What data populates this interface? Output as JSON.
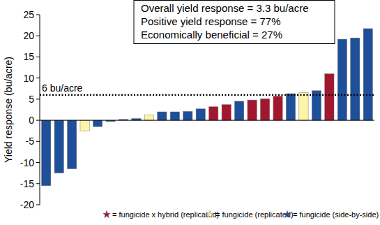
{
  "chart_data": {
    "type": "bar",
    "y_label": "Yield response (bu/acre)",
    "annotations": [
      "Overall yield response = 3.3 bu/acre",
      "Positive yield response = 77%",
      "Economically beneficial = 27%"
    ],
    "reference_line": {
      "value": 6,
      "label": "6 bu/acre",
      "line_style": "dotted"
    },
    "categories": [
      null,
      null,
      null,
      null,
      null,
      null,
      null,
      null,
      null,
      null,
      null,
      null,
      null,
      null,
      null,
      null,
      null,
      null,
      null,
      null,
      null,
      null,
      null,
      null,
      null,
      null
    ],
    "values": [
      -15.5,
      -12.5,
      -11.5,
      -2.5,
      -1.5,
      -0.3,
      0.2,
      0.4,
      1.3,
      2.0,
      2.0,
      2.1,
      2.7,
      3.2,
      3.7,
      4.5,
      4.8,
      5.1,
      5.7,
      6.3,
      6.6,
      7.0,
      11.0,
      19.2,
      19.5,
      21.7
    ],
    "colors": [
      "#1d4f9a",
      "#1d4f9a",
      "#1d4f9a",
      "#fdf5a6",
      "#1d4f9a",
      "#1d4f9a",
      "#1d4f9a",
      "#1d4f9a",
      "#fdf5a6",
      "#1d4f9a",
      "#1d4f9a",
      "#1d4f9a",
      "#1d4f9a",
      "#a3172e",
      "#a3172e",
      "#1d4f9a",
      "#a3172e",
      "#a3172e",
      "#a3172e",
      "#1d4f9a",
      "#fdf5a6",
      "#1d4f9a",
      "#a3172e",
      "#1d4f9a",
      "#1d4f9a",
      "#1d4f9a"
    ],
    "legend_entries": [
      {
        "name": "= fungicide x hybrid (replicated)",
        "color": "#a3172e",
        "marker": "star"
      },
      {
        "name": "= fungicide (replicated)",
        "color": "#fdf5a6",
        "marker": "star"
      },
      {
        "name": "= fungicide (side-by-side)",
        "color": "#1d4f9a",
        "marker": "star"
      }
    ],
    "ylim": [
      -20,
      25
    ],
    "yticks": [
      -20,
      -15,
      -10,
      -5,
      0,
      5,
      10,
      15,
      20,
      25
    ],
    "grid": false,
    "tick_labels": "y",
    "legend": "bottom"
  }
}
